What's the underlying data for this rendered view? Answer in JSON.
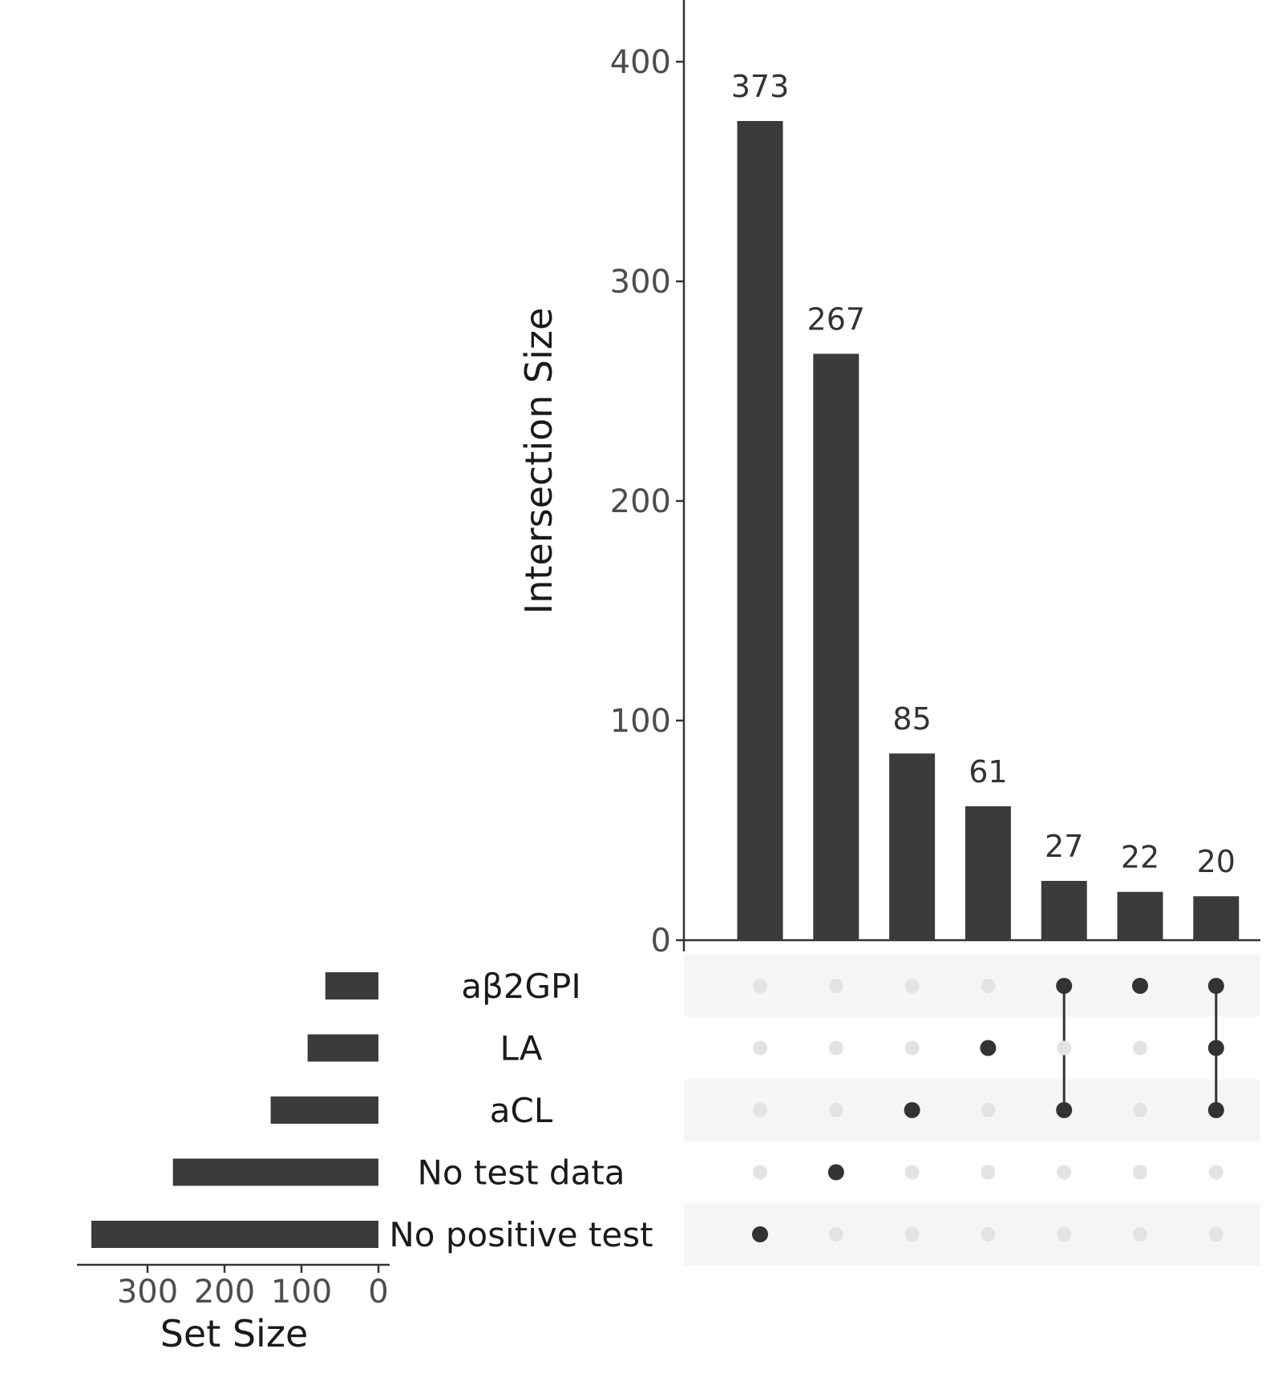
{
  "chart_data": {
    "type": "bar",
    "intersection_plot": {
      "ylabel": "Intersection Size",
      "ylim": [
        0,
        430
      ],
      "yticks": [
        0,
        100,
        200,
        300,
        400
      ],
      "values": [
        373,
        267,
        85,
        61,
        27,
        22,
        20
      ],
      "value_labels": [
        "373",
        "267",
        "85",
        "61",
        "27",
        "22",
        "20"
      ]
    },
    "sets": [
      "aβ2GPI",
      "LA",
      "aCL",
      "No test data",
      "No positive test"
    ],
    "set_sizes": [
      69,
      92,
      140,
      267,
      373
    ],
    "set_size_axis": {
      "xlabel": "Set Size",
      "xticks": [
        300,
        200,
        100,
        0
      ],
      "xlim": [
        0,
        390
      ]
    },
    "matrix": [
      [
        "No positive test"
      ],
      [
        "No test data"
      ],
      [
        "aCL"
      ],
      [
        "LA"
      ],
      [
        "aβ2GPI",
        "aCL"
      ],
      [
        "aβ2GPI"
      ],
      [
        "aβ2GPI",
        "LA",
        "aCL"
      ]
    ],
    "colors": {
      "bar": "#3b3b3b",
      "dot_active": "#333333",
      "dot_inactive": "#e3e3e3",
      "stripe": "#f5f5f5",
      "axis": "#333333"
    }
  }
}
